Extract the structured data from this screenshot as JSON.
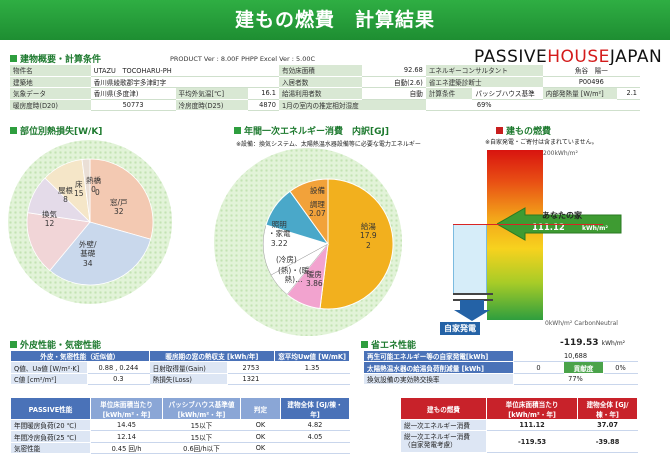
{
  "banner": {
    "title": "建もの燃費　計算結果"
  },
  "overview": {
    "title": "建物概要・計算条件",
    "version": "PRODUCT Ver : 8.00F  PHPP Excel Ver : 5.00C",
    "logo_main": "PASSIVE",
    "logo_mid": "HOUSE",
    "logo_end": "JAPAN",
    "rows": [
      [
        "物件名",
        "UTAZU　TOCOHARU-PH",
        "",
        "有効床面積",
        "92.68",
        "エネルギーコンサルタント",
        "魚谷　陽一",
        ""
      ],
      [
        "建築地",
        "香川県綾歌郡宇多津町字",
        "",
        "入居者数",
        "自動(2.6)",
        "省エネ建築診断士",
        "P00496",
        ""
      ],
      [
        "気象データ",
        "香川県(多度津)",
        "平均外気温[℃]",
        "16.1",
        "給湯利用者数",
        "自動",
        "計算条件",
        "パッシブハウス基準"
      ],
      [
        "暖房度時(D20)",
        "50773",
        "冷房度時(D25)",
        "4870",
        "1月の室内の推定相対湿度",
        "69%",
        "",
        ""
      ]
    ],
    "extra_label": "内部発熱量 [W/m²]",
    "extra_value": "2.1"
  },
  "loss_section": {
    "title": "部位別熱損失[W/K]",
    "labels": [
      "窓/戸\n32",
      "外壁/\n基礎\n34",
      "換気\n12",
      "屋根\n8",
      "床\n15",
      "熱橋\n0",
      "0"
    ]
  },
  "primary_section": {
    "title": "年間一次エネルギー消費　内訳[GJ]",
    "note": "※設備：換気システム、太陽熱温水器設備等に必要な電力エネルギー",
    "labels": [
      "給湯\n17.9\n2",
      "暖房\n3.86",
      "照明\n・家電\n3.22",
      "調理\n2.07",
      "設備",
      "(冷房)",
      "(熱)・(暖\n熱)…"
    ]
  },
  "fuel_section": {
    "title": "建もの燃費",
    "note": "※自家発電・ご寄付は含まれていません。",
    "top_label": "200kWh/m²",
    "bottom_label": "0kWh/m²  CarbonNeutral",
    "your_house": "あなたの家",
    "your_value": "111.12",
    "your_unit": "kWh/m²",
    "self_gen": "自家発電",
    "self_value": "-119.53",
    "self_unit": "kWh/m²"
  },
  "envelope": {
    "title": "外皮性能・気密性能",
    "h1": "外皮・気密性能（近似値）",
    "h2": "暖房期の窓の熱収支 [kWh/年]",
    "h3": "窓平均Uw値 [W/mK]",
    "r1": [
      "Q値、Ua値 [W/m²·K]",
      "0.88 , 0.244",
      "日射取得量(Gain)",
      "2753",
      "1.35"
    ],
    "r2": [
      "C値 [cm²/m²]",
      "0.3",
      "熱損失(Loss)",
      "1321",
      "1.35"
    ],
    "ph_head": [
      "PASSIVE性能",
      "単位床面積当たり [kWh/m²・年]",
      "パッシブハウス基準値 [kWh/m²・年]",
      "判定",
      "建物全体 [GJ/棟・年]"
    ],
    "ph_rows": [
      [
        "年間暖房負荷(20 ℃)",
        "14.45",
        "15以下",
        "OK",
        "4.82"
      ],
      [
        "年間冷房負荷(25 ℃)",
        "12.14",
        "15以下",
        "OK",
        "4.05"
      ],
      [
        "気密性能",
        "0.45 回/h",
        "0.6回/h以下",
        "OK",
        ""
      ]
    ]
  },
  "energy_perf": {
    "title": "省エネ性能",
    "rows": [
      [
        "再生可能エネルギー等の自家発電[kWh]",
        "10,688",
        "",
        ""
      ],
      [
        "太陽熱温水器の給湯負荷削減量 [kWh]",
        "0",
        "貢献度",
        "0%"
      ],
      [
        "換気設備の実効熱交換率",
        "77%",
        "",
        ""
      ]
    ],
    "fuel_head": [
      "建もの燃費",
      "単位床面積当たり [kWh/m²・年]",
      "建物全体 [GJ/棟・年]"
    ],
    "fuel_rows": [
      [
        "総一次エネルギー消費",
        "111.12",
        "37.07"
      ],
      [
        "総一次エネルギー消費\n（自家発電考慮）",
        "-119.53",
        "-39.88"
      ]
    ]
  },
  "colors": {
    "green": "#2e9e3e",
    "blue": "#4a72b8",
    "red": "#c8222a",
    "pie_orange": "#f2a23a"
  }
}
